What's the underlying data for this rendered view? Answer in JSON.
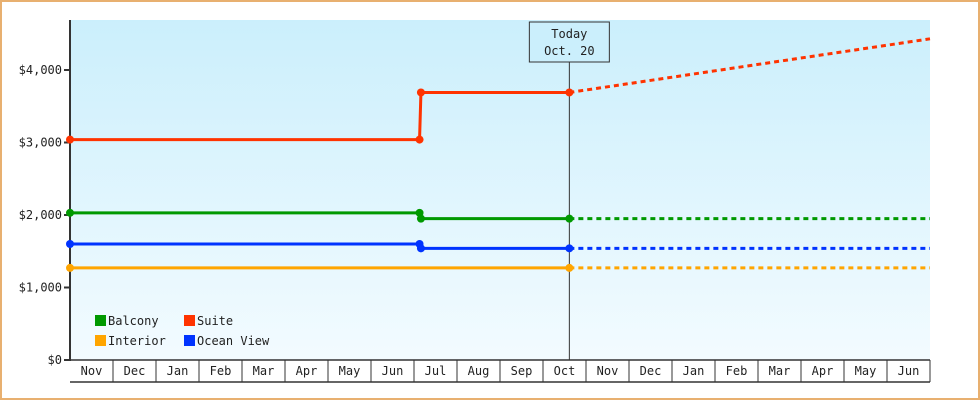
{
  "chart_data": {
    "type": "line",
    "title": "",
    "xlabel": "",
    "ylabel": "",
    "ylim": [
      0,
      4700
    ],
    "yticks": [
      0,
      1000,
      2000,
      3000,
      4000
    ],
    "ytick_labels": [
      "$0",
      "$1,000",
      "$2,000",
      "$3,000",
      "$4,000"
    ],
    "months": [
      "Nov",
      "Dec",
      "Jan",
      "Feb",
      "Mar",
      "Apr",
      "May",
      "Jun",
      "Jul",
      "Aug",
      "Sep",
      "Oct",
      "Nov",
      "Dec",
      "Jan",
      "Feb",
      "Mar",
      "Apr",
      "May",
      "Jun"
    ],
    "today": {
      "label": "Today",
      "date_label": "Oct. 20",
      "month_index": 11,
      "day": 20
    },
    "legend_position": "bottom-left",
    "grid": false,
    "series": [
      {
        "name": "Balcony",
        "color": "#009900",
        "points": [
          {
            "month_index": 0,
            "day": 1,
            "value": 2030
          },
          {
            "month_index": 8,
            "day": 5,
            "value": 2030
          },
          {
            "month_index": 8,
            "day": 6,
            "value": 1950
          },
          {
            "month_index": 11,
            "day": 20,
            "value": 1950
          }
        ],
        "projection": [
          {
            "month_index": 11,
            "day": 20,
            "value": 1950
          },
          {
            "month_index": 19,
            "day": 31,
            "value": 1950
          }
        ]
      },
      {
        "name": "Suite",
        "color": "#ff3300",
        "points": [
          {
            "month_index": 0,
            "day": 1,
            "value": 3040
          },
          {
            "month_index": 8,
            "day": 5,
            "value": 3040
          },
          {
            "month_index": 8,
            "day": 6,
            "value": 3690
          },
          {
            "month_index": 11,
            "day": 20,
            "value": 3690
          }
        ],
        "projection": [
          {
            "month_index": 11,
            "day": 20,
            "value": 3690
          },
          {
            "month_index": 19,
            "day": 31,
            "value": 4430
          }
        ]
      },
      {
        "name": "Interior",
        "color": "#ffa500",
        "points": [
          {
            "month_index": 0,
            "day": 1,
            "value": 1270
          },
          {
            "month_index": 11,
            "day": 20,
            "value": 1270
          }
        ],
        "projection": [
          {
            "month_index": 11,
            "day": 20,
            "value": 1270
          },
          {
            "month_index": 19,
            "day": 31,
            "value": 1270
          }
        ]
      },
      {
        "name": "Ocean View",
        "color": "#0033ff",
        "points": [
          {
            "month_index": 0,
            "day": 1,
            "value": 1600
          },
          {
            "month_index": 8,
            "day": 5,
            "value": 1600
          },
          {
            "month_index": 8,
            "day": 6,
            "value": 1540
          },
          {
            "month_index": 11,
            "day": 20,
            "value": 1540
          }
        ],
        "projection": [
          {
            "month_index": 11,
            "day": 20,
            "value": 1540
          },
          {
            "month_index": 19,
            "day": 31,
            "value": 1540
          }
        ]
      }
    ]
  }
}
